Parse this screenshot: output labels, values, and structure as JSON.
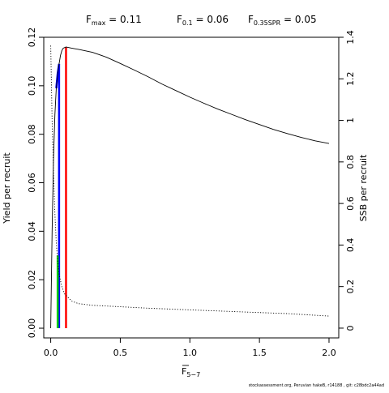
{
  "top_labels": [
    {
      "main": "F",
      "sub": "max",
      "value": " = 0.11"
    },
    {
      "main": "F",
      "sub": "0.1",
      "value": " = 0.06"
    },
    {
      "main": "F",
      "sub": "0.35SPR",
      "value": " = 0.05"
    }
  ],
  "credit": "stockassessment.org, Peruvian hakeB, r14188 , git: c28bdc2a44ad",
  "colors": {
    "fmax_line": "#ff0000",
    "f01_line": "#0000ff",
    "f35spr_line": "#00cd00",
    "curve": "#000000"
  },
  "chart_data": {
    "type": "line",
    "xlabel": {
      "main": "F",
      "sub": "5−7",
      "overline": true
    },
    "ylabel_left": "Yield per recruit",
    "ylabel_right": "SSB per recruit",
    "xlim": [
      -0.05,
      2.07
    ],
    "ylim_left": [
      -0.004,
      0.12
    ],
    "ylim_right": [
      -0.047,
      1.4
    ],
    "x_ticks": [
      "0.0",
      "0.5",
      "1.0",
      "1.5",
      "2.0"
    ],
    "x_tick_values": [
      0,
      0.5,
      1.0,
      1.5,
      2.0
    ],
    "y_left_ticks": [
      "0.00",
      "0.02",
      "0.04",
      "0.06",
      "0.08",
      "0.10",
      "0.12"
    ],
    "y_left_tick_values": [
      0,
      0.02,
      0.04,
      0.06,
      0.08,
      0.1,
      0.12
    ],
    "y_right_ticks": [
      "0",
      "0.2",
      "0.4",
      "0.6",
      "0.8",
      "1",
      "1.2",
      "1.4"
    ],
    "y_right_tick_values": [
      0,
      0.2,
      0.4,
      0.6,
      0.8,
      1.0,
      1.2,
      1.4
    ],
    "series": [
      {
        "axis": "left",
        "style": "solid",
        "points": [
          [
            0,
            0
          ],
          [
            0.01,
            0.04
          ],
          [
            0.02,
            0.07
          ],
          [
            0.03,
            0.088
          ],
          [
            0.04,
            0.099
          ],
          [
            0.05,
            0.105
          ],
          [
            0.06,
            0.109
          ],
          [
            0.07,
            0.1125
          ],
          [
            0.08,
            0.1145
          ],
          [
            0.09,
            0.1155
          ],
          [
            0.11,
            0.116
          ],
          [
            0.15,
            0.1155
          ],
          [
            0.2,
            0.115
          ],
          [
            0.3,
            0.1138
          ],
          [
            0.4,
            0.1118
          ],
          [
            0.5,
            0.1092
          ],
          [
            0.6,
            0.1065
          ],
          [
            0.7,
            0.1037
          ],
          [
            0.8,
            0.1007
          ],
          [
            0.9,
            0.098
          ],
          [
            1.0,
            0.0953
          ],
          [
            1.1,
            0.0928
          ],
          [
            1.2,
            0.0904
          ],
          [
            1.3,
            0.0882
          ],
          [
            1.4,
            0.086
          ],
          [
            1.5,
            0.084
          ],
          [
            1.6,
            0.082
          ],
          [
            1.7,
            0.0803
          ],
          [
            1.8,
            0.0787
          ],
          [
            1.9,
            0.0773
          ],
          [
            2.0,
            0.0762
          ]
        ]
      },
      {
        "axis": "right",
        "style": "dotted",
        "points": [
          [
            0,
            1.36
          ],
          [
            0.01,
            1.0
          ],
          [
            0.02,
            0.75
          ],
          [
            0.03,
            0.55
          ],
          [
            0.04,
            0.41
          ],
          [
            0.05,
            0.32
          ],
          [
            0.06,
            0.26
          ],
          [
            0.08,
            0.2
          ],
          [
            0.1,
            0.165
          ],
          [
            0.15,
            0.13
          ],
          [
            0.2,
            0.118
          ],
          [
            0.3,
            0.11
          ],
          [
            0.5,
            0.103
          ],
          [
            0.7,
            0.096
          ],
          [
            1.0,
            0.088
          ],
          [
            1.3,
            0.08
          ],
          [
            1.5,
            0.075
          ],
          [
            1.7,
            0.07
          ],
          [
            2.0,
            0.058
          ]
        ]
      }
    ],
    "reference_lines": [
      {
        "label": "Fmax",
        "x": 0.11,
        "y_from": 0,
        "y_to": 0.116,
        "color": "#ff0000"
      },
      {
        "label": "F0.1",
        "x": 0.06,
        "y_from": 0,
        "y_to": 0.109,
        "color": "#0000ff"
      },
      {
        "label": "F0.35SPR",
        "x": 0.05,
        "y_from": 0,
        "y_to": 0.03,
        "color": "#00cd00"
      }
    ]
  }
}
